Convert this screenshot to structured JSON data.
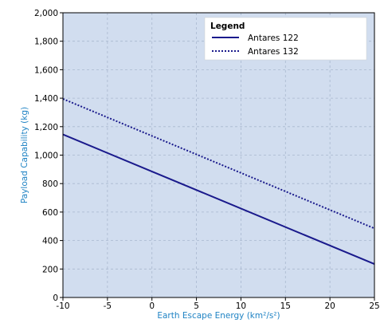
{
  "chart_data": {
    "type": "line",
    "xlabel": "Earth Escape Energy (km²/s²)",
    "ylabel": "Payload Capability (kg)",
    "xlim": [
      -10,
      25
    ],
    "ylim": [
      0,
      2000
    ],
    "xticks": [
      -10,
      -5,
      0,
      5,
      10,
      15,
      20,
      25
    ],
    "yticks": [
      0,
      200,
      400,
      600,
      800,
      1000,
      1200,
      1400,
      1600,
      1800,
      2000
    ],
    "xtick_labels": [
      "-10",
      "-5",
      "0",
      "5",
      "10",
      "15",
      "20",
      "25"
    ],
    "ytick_labels": [
      "0",
      "200",
      "400",
      "600",
      "800",
      "1,000",
      "1,200",
      "1,400",
      "1,600",
      "1,800",
      "2,000"
    ],
    "grid": true,
    "legend": {
      "title": "Legend",
      "position": "top-right"
    },
    "series": [
      {
        "name": "Antares 122",
        "style": "solid",
        "color": "#1a1a8c",
        "x": [
          -10,
          25
        ],
        "y": [
          1145,
          235
        ]
      },
      {
        "name": "Antares 132",
        "style": "dotted",
        "color": "#1a1a8c",
        "x": [
          -10,
          25
        ],
        "y": [
          1395,
          485
        ]
      }
    ],
    "colors": {
      "plot_background": "#d1ddef",
      "grid": "#a9b8cf",
      "axis_title": "#1f83c4",
      "line": "#1a1a8c"
    }
  }
}
